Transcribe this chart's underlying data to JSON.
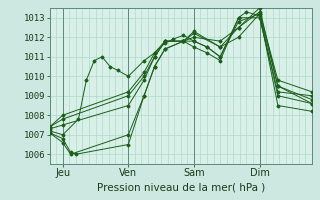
{
  "bg_color": "#cce8e0",
  "plot_bg_color": "#d8f0e8",
  "grid_color": "#b0d8cc",
  "line_color": "#1a5e1a",
  "marker_color": "#1a5e1a",
  "xlabel": "Pression niveau de la mer( hPa )",
  "yticks": [
    1006,
    1007,
    1008,
    1009,
    1010,
    1011,
    1012,
    1013
  ],
  "ylim": [
    1005.5,
    1013.5
  ],
  "xlim": [
    0,
    100
  ],
  "xtick_positions": [
    5,
    30,
    55,
    80
  ],
  "xtick_labels": [
    "Jeu",
    "Ven",
    "Sam",
    "Dim"
  ],
  "vlines": [
    5,
    30,
    55,
    80
  ],
  "series": [
    [
      0,
      1007.2,
      5,
      1007.0,
      11,
      1007.8,
      14,
      1009.8,
      17,
      1010.8,
      20,
      1011.0,
      23,
      1010.5,
      26,
      1010.3,
      30,
      1010.0,
      36,
      1010.8,
      40,
      1011.2,
      44,
      1011.7,
      47,
      1011.9,
      51,
      1012.1,
      55,
      1011.8,
      60,
      1011.5,
      65,
      1011.0,
      72,
      1013.0,
      75,
      1013.3,
      80,
      1013.1,
      87,
      1009.0,
      100,
      1008.6
    ],
    [
      0,
      1007.1,
      5,
      1006.8,
      8,
      1006.1,
      10,
      1006.0,
      30,
      1006.5,
      36,
      1009.0,
      40,
      1010.5,
      44,
      1011.4,
      51,
      1011.8,
      55,
      1011.5,
      60,
      1011.2,
      65,
      1010.8,
      72,
      1013.0,
      80,
      1013.0,
      87,
      1009.2,
      100,
      1009.0
    ],
    [
      0,
      1007.1,
      5,
      1006.6,
      8,
      1006.0,
      30,
      1007.0,
      36,
      1009.0,
      40,
      1010.5,
      44,
      1011.4,
      51,
      1011.8,
      55,
      1011.8,
      60,
      1011.5,
      65,
      1011.0,
      72,
      1012.8,
      80,
      1013.2,
      87,
      1008.5,
      100,
      1008.2
    ],
    [
      0,
      1007.3,
      5,
      1007.5,
      30,
      1008.5,
      36,
      1009.8,
      40,
      1011.0,
      44,
      1011.8,
      51,
      1011.8,
      55,
      1012.2,
      65,
      1011.5,
      72,
      1012.0,
      80,
      1013.2,
      87,
      1009.5,
      100,
      1008.8
    ],
    [
      0,
      1007.4,
      5,
      1007.8,
      30,
      1009.0,
      36,
      1010.0,
      40,
      1011.0,
      44,
      1011.8,
      51,
      1011.8,
      55,
      1012.3,
      65,
      1011.5,
      72,
      1012.5,
      80,
      1013.3,
      87,
      1009.8,
      100,
      1009.2
    ],
    [
      0,
      1007.4,
      5,
      1008.0,
      30,
      1009.2,
      36,
      1010.2,
      40,
      1011.2,
      44,
      1011.8,
      51,
      1011.8,
      55,
      1012.0,
      65,
      1011.8,
      72,
      1012.5,
      80,
      1013.5,
      87,
      1009.5,
      100,
      1008.6
    ]
  ]
}
